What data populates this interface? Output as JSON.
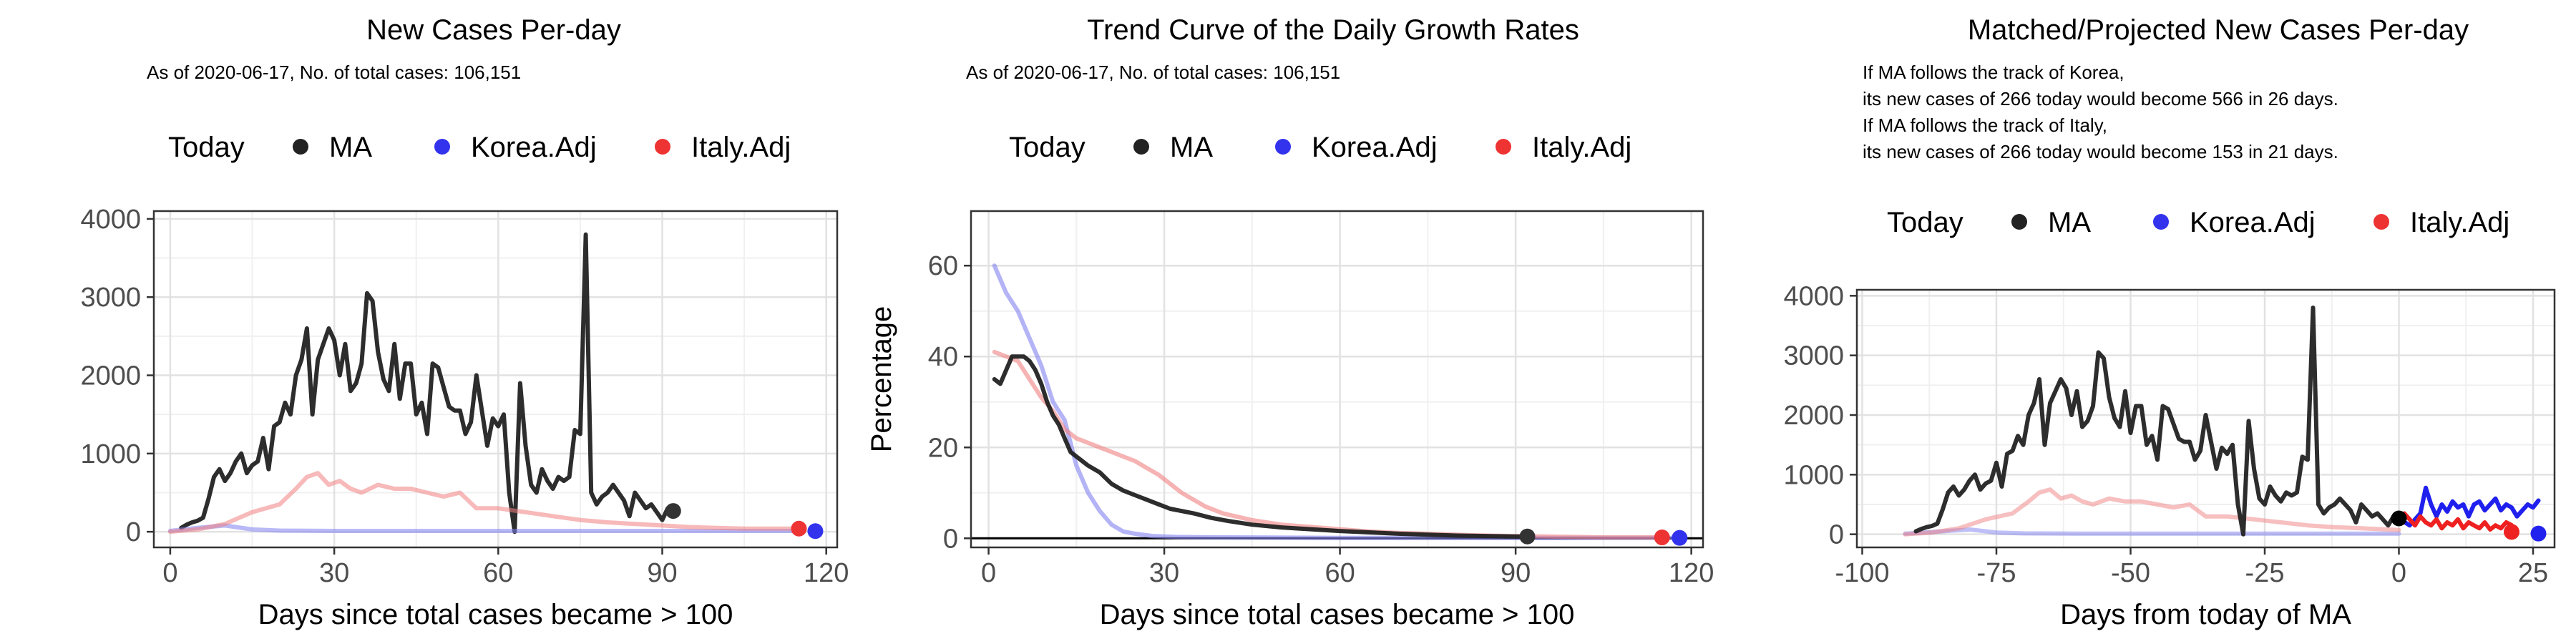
{
  "chart_data": [
    {
      "type": "line",
      "title": "New Cases Per-day",
      "subtitle_lines": [
        "As of 2020-06-17, No. of total cases: 106,151"
      ],
      "xlabel": "Days since total cases became > 100",
      "ylabel": "",
      "xlim": [
        -3,
        122
      ],
      "ylim": [
        -200,
        4100
      ],
      "xticks": [
        0,
        30,
        60,
        90,
        120
      ],
      "yticks": [
        0,
        1000,
        2000,
        3000,
        4000
      ],
      "grid": true,
      "legend": {
        "position": "top",
        "title": "Today",
        "entries": [
          "MA",
          "Korea.Adj",
          "Italy.Adj"
        ]
      },
      "series": [
        {
          "name": "MA",
          "color": "#222222",
          "opacity": 0.95,
          "width": 6,
          "x": [
            2,
            3,
            4,
            5,
            6,
            7,
            8,
            9,
            10,
            11,
            12,
            13,
            14,
            15,
            16,
            17,
            18,
            19,
            20,
            21,
            22,
            23,
            24,
            25,
            26,
            27,
            28,
            29,
            30,
            31,
            32,
            33,
            34,
            35,
            36,
            37,
            38,
            39,
            40,
            41,
            42,
            43,
            44,
            45,
            46,
            47,
            48,
            49,
            50,
            51,
            52,
            53,
            54,
            55,
            56,
            57,
            58,
            59,
            60,
            61,
            62,
            63,
            64,
            65,
            66,
            67,
            68,
            69,
            70,
            71,
            72,
            73,
            74,
            75,
            76,
            77,
            78,
            79,
            80,
            81,
            82,
            83,
            84,
            85,
            86,
            87,
            88,
            89,
            90,
            91
          ],
          "y": [
            50,
            90,
            120,
            140,
            180,
            420,
            700,
            800,
            650,
            750,
            900,
            1000,
            750,
            850,
            900,
            1200,
            800,
            1350,
            1400,
            1650,
            1500,
            2000,
            2200,
            2600,
            1500,
            2200,
            2400,
            2600,
            2450,
            2000,
            2400,
            1800,
            1900,
            2150,
            3050,
            2950,
            2300,
            1950,
            1800,
            2400,
            1700,
            2150,
            2150,
            1500,
            1650,
            1250,
            2150,
            2100,
            1850,
            1600,
            1550,
            1550,
            1250,
            1400,
            2000,
            1550,
            1100,
            1450,
            1350,
            1500,
            500,
            0,
            1900,
            1100,
            600,
            500,
            800,
            650,
            550,
            700,
            650,
            700,
            1300,
            1250,
            3800,
            500,
            350,
            450,
            500,
            600,
            500,
            400,
            200,
            500,
            400,
            300,
            350,
            250,
            150,
            300
          ]
        },
        {
          "name": "Korea.Adj",
          "color": "#8080f0",
          "opacity": 0.55,
          "width": 6,
          "x": [
            0,
            5,
            10,
            15,
            20,
            30,
            40,
            50,
            60,
            70,
            80,
            90,
            100,
            110,
            116
          ],
          "y": [
            10,
            50,
            80,
            30,
            15,
            10,
            10,
            10,
            10,
            10,
            10,
            10,
            10,
            10,
            10
          ]
        },
        {
          "name": "Italy.Adj",
          "color": "#f08080",
          "opacity": 0.55,
          "width": 6,
          "x": [
            0,
            5,
            10,
            15,
            20,
            23,
            25,
            27,
            29,
            31,
            33,
            35,
            38,
            41,
            44,
            47,
            50,
            53,
            56,
            60,
            65,
            70,
            75,
            80,
            85,
            90,
            95,
            100,
            105,
            110,
            114
          ],
          "y": [
            0,
            30,
            100,
            250,
            350,
            550,
            700,
            750,
            600,
            650,
            550,
            500,
            600,
            550,
            550,
            500,
            450,
            500,
            300,
            300,
            250,
            200,
            150,
            120,
            100,
            80,
            60,
            50,
            40,
            40,
            40
          ]
        }
      ],
      "today_points": [
        {
          "series": "MA",
          "x": 92,
          "y": 266,
          "color": "#333333"
        },
        {
          "series": "Korea.Adj",
          "x": 118,
          "y": 8,
          "color": "#3333ee"
        },
        {
          "series": "Italy.Adj",
          "x": 115,
          "y": 40,
          "color": "#ee3333"
        }
      ],
      "hline": null
    },
    {
      "type": "line",
      "title": "Trend Curve of the Daily Growth Rates",
      "subtitle_lines": [
        "As of 2020-06-17, No. of total cases: 106,151"
      ],
      "xlabel": "Days since total cases became > 100",
      "ylabel": "Percentage",
      "xlim": [
        -3,
        122
      ],
      "ylim": [
        -2,
        72
      ],
      "xticks": [
        0,
        30,
        60,
        90,
        120
      ],
      "yticks": [
        0,
        20,
        40,
        60
      ],
      "grid": true,
      "legend": {
        "position": "top",
        "title": "Today",
        "entries": [
          "MA",
          "Korea.Adj",
          "Italy.Adj"
        ]
      },
      "series": [
        {
          "name": "Korea.Adj",
          "color": "#8080f0",
          "opacity": 0.6,
          "width": 6,
          "x": [
            1,
            3,
            5,
            7,
            9,
            11,
            13,
            15,
            17,
            19,
            21,
            23,
            25,
            28,
            32,
            40,
            60,
            80,
            100,
            118
          ],
          "y": [
            60,
            54,
            50,
            44,
            38,
            30,
            26,
            16,
            10,
            6,
            3,
            1.5,
            1,
            0.5,
            0.3,
            0.2,
            0.1,
            0.1,
            0.1,
            0.1
          ]
        },
        {
          "name": "Italy.Adj",
          "color": "#f08080",
          "opacity": 0.6,
          "width": 6,
          "x": [
            1,
            3,
            5,
            7,
            9,
            11,
            13,
            15,
            17,
            19,
            21,
            23,
            25,
            27,
            29,
            31,
            33,
            35,
            37,
            40,
            45,
            50,
            55,
            60,
            65,
            70,
            75,
            80,
            85,
            90,
            95,
            100,
            105,
            110,
            115
          ],
          "y": [
            41,
            40,
            39,
            35,
            31,
            28,
            24,
            22,
            21,
            20,
            19,
            18,
            17,
            15.5,
            14,
            12,
            10,
            8.5,
            7,
            5.5,
            4,
            3,
            2.5,
            2,
            1.5,
            1.2,
            1,
            0.8,
            0.6,
            0.5,
            0.4,
            0.3,
            0.2,
            0.2,
            0.2
          ]
        },
        {
          "name": "MA",
          "color": "#222222",
          "opacity": 0.95,
          "width": 6,
          "x": [
            1,
            2,
            3,
            4,
            5,
            6,
            7,
            8,
            9,
            10,
            11,
            12,
            13,
            14,
            15,
            17,
            19,
            21,
            23,
            25,
            27,
            29,
            31,
            33,
            35,
            38,
            41,
            45,
            50,
            55,
            60,
            65,
            70,
            75,
            80,
            85,
            90,
            92
          ],
          "y": [
            35,
            34,
            37,
            40,
            40,
            40,
            39,
            37,
            34,
            30,
            27,
            25,
            22,
            19,
            18,
            16,
            14.5,
            12,
            10.5,
            9.5,
            8.5,
            7.5,
            6.5,
            6,
            5.5,
            4.5,
            3.8,
            3,
            2.4,
            2,
            1.6,
            1.3,
            1,
            0.8,
            0.6,
            0.5,
            0.4,
            0.4
          ]
        }
      ],
      "today_points": [
        {
          "series": "MA",
          "x": 92,
          "y": 0.4,
          "color": "#333333"
        },
        {
          "series": "Korea.Adj",
          "x": 118,
          "y": 0.1,
          "color": "#3333ee"
        },
        {
          "series": "Italy.Adj",
          "x": 115,
          "y": 0.2,
          "color": "#ee3333"
        }
      ],
      "hline": {
        "y": 0,
        "color": "#000000"
      }
    },
    {
      "type": "line",
      "title": "Matched/Projected New Cases Per-day",
      "subtitle_lines": [
        "If MA follows the track of Korea,",
        "its new cases of 266 today would become 566 in 26 days.",
        "If MA follows the track of Italy,",
        "its new cases of 266 today would become 153 in 21 days."
      ],
      "xlabel": "Days from today of MA",
      "ylabel": "",
      "xlim": [
        -101,
        29
      ],
      "ylim": [
        -220,
        4100
      ],
      "xticks": [
        -100,
        -75,
        -50,
        -25,
        0,
        25
      ],
      "yticks": [
        0,
        1000,
        2000,
        3000,
        4000
      ],
      "grid": true,
      "legend": {
        "position": "top",
        "title": "Today",
        "entries": [
          "MA",
          "Korea.Adj",
          "Italy.Adj"
        ]
      },
      "series": [
        {
          "name": "Korea.Adj (past)",
          "color": "#8080f0",
          "opacity": 0.5,
          "width": 6,
          "x": [
            -92,
            -85,
            -80,
            -75,
            -70,
            -60,
            -50,
            -40,
            -30,
            -20,
            -10,
            0
          ],
          "y": [
            10,
            50,
            80,
            30,
            15,
            10,
            10,
            10,
            10,
            10,
            10,
            10
          ]
        },
        {
          "name": "Italy.Adj (past)",
          "color": "#f08080",
          "opacity": 0.5,
          "width": 6,
          "x": [
            -92,
            -87,
            -82,
            -77,
            -72,
            -69,
            -67,
            -65,
            -63,
            -61,
            -59,
            -57,
            -54,
            -51,
            -48,
            -45,
            -42,
            -39,
            -36,
            -32,
            -27,
            -22,
            -17,
            -12,
            -7,
            -2,
            0
          ],
          "y": [
            0,
            30,
            100,
            250,
            350,
            550,
            700,
            750,
            600,
            650,
            550,
            500,
            600,
            550,
            550,
            500,
            450,
            500,
            300,
            300,
            250,
            200,
            150,
            120,
            100,
            80,
            70
          ]
        },
        {
          "name": "MA",
          "color": "#222222",
          "opacity": 0.95,
          "width": 6,
          "x": [
            -90,
            -89,
            -88,
            -87,
            -86,
            -85,
            -84,
            -83,
            -82,
            -81,
            -80,
            -79,
            -78,
            -77,
            -76,
            -75,
            -74,
            -73,
            -72,
            -71,
            -70,
            -69,
            -68,
            -67,
            -66,
            -65,
            -64,
            -63,
            -62,
            -61,
            -60,
            -59,
            -58,
            -57,
            -56,
            -55,
            -54,
            -53,
            -52,
            -51,
            -50,
            -49,
            -48,
            -47,
            -46,
            -45,
            -44,
            -43,
            -42,
            -41,
            -40,
            -39,
            -38,
            -37,
            -36,
            -35,
            -34,
            -33,
            -32,
            -31,
            -30,
            -29,
            -28,
            -27,
            -26,
            -25,
            -24,
            -23,
            -22,
            -21,
            -20,
            -19,
            -18,
            -17,
            -16,
            -15,
            -14,
            -13,
            -12,
            -11,
            -10,
            -9,
            -8,
            -7,
            -6,
            -5,
            -4,
            -3,
            -2,
            -1
          ],
          "y": [
            50,
            90,
            120,
            140,
            180,
            420,
            700,
            800,
            650,
            750,
            900,
            1000,
            750,
            850,
            900,
            1200,
            800,
            1350,
            1400,
            1650,
            1500,
            2000,
            2200,
            2600,
            1500,
            2200,
            2400,
            2600,
            2450,
            2000,
            2400,
            1800,
            1900,
            2150,
            3050,
            2950,
            2300,
            1950,
            1800,
            2400,
            1700,
            2150,
            2150,
            1500,
            1650,
            1250,
            2150,
            2100,
            1850,
            1600,
            1550,
            1550,
            1250,
            1400,
            2000,
            1550,
            1100,
            1450,
            1350,
            1500,
            500,
            0,
            1900,
            1100,
            600,
            500,
            800,
            650,
            550,
            700,
            650,
            700,
            1300,
            1250,
            3800,
            500,
            350,
            450,
            500,
            600,
            500,
            400,
            200,
            500,
            400,
            300,
            350,
            250,
            150,
            300
          ]
        },
        {
          "name": "Korea.Adj (projected)",
          "color": "#2020ee",
          "opacity": 1.0,
          "width": 6,
          "x": [
            0,
            2,
            4,
            5,
            6,
            7,
            8,
            9,
            10,
            11,
            12,
            13,
            14,
            15,
            16,
            17,
            18,
            19,
            20,
            21,
            22,
            23,
            24,
            25,
            26
          ],
          "y": [
            266,
            150,
            350,
            780,
            500,
            300,
            500,
            380,
            550,
            450,
            500,
            300,
            500,
            550,
            400,
            500,
            600,
            400,
            500,
            450,
            300,
            400,
            500,
            450,
            566
          ]
        },
        {
          "name": "Italy.Adj (projected)",
          "color": "#ee2020",
          "opacity": 1.0,
          "width": 6,
          "x": [
            0,
            1,
            2,
            3,
            4,
            5,
            6,
            7,
            8,
            9,
            10,
            11,
            12,
            13,
            14,
            15,
            16,
            17,
            18,
            19,
            20,
            21
          ],
          "y": [
            266,
            350,
            250,
            150,
            300,
            200,
            150,
            250,
            100,
            200,
            150,
            250,
            100,
            200,
            150,
            100,
            200,
            80,
            150,
            100,
            200,
            153
          ]
        }
      ],
      "today_points": [
        {
          "series": "MA",
          "x": 0,
          "y": 266,
          "color": "#000000"
        },
        {
          "series": "Korea.Adj",
          "x": 26,
          "y": 12,
          "color": "#2222ee"
        },
        {
          "series": "Italy.Adj",
          "x": 21,
          "y": 40,
          "color": "#ee2222"
        }
      ],
      "hline": null
    }
  ]
}
